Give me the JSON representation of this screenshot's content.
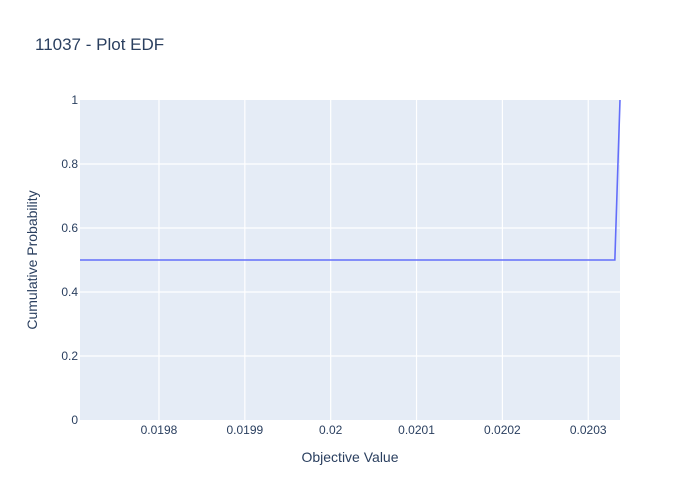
{
  "chart_data": {
    "type": "line",
    "title": "11037 - Plot EDF",
    "xlabel": "Objective Value",
    "ylabel": "Cumulative Probability",
    "xlim": [
      0.019708,
      0.020337
    ],
    "ylim": [
      0,
      1
    ],
    "xticks": [
      0.0198,
      0.0199,
      0.02,
      0.0201,
      0.0202,
      0.0203
    ],
    "xtick_labels": [
      "0.0198",
      "0.0199",
      "0.02",
      "0.0201",
      "0.0202",
      "0.0203"
    ],
    "yticks": [
      0,
      0.2,
      0.4,
      0.6,
      0.8,
      1
    ],
    "ytick_labels": [
      "0",
      "0.2",
      "0.4",
      "0.6",
      "0.8",
      "1"
    ],
    "grid": true,
    "series": [
      {
        "x": [
          0.019708,
          0.020331,
          0.020337
        ],
        "y": [
          0.5,
          0.5,
          1.0
        ],
        "color": "#636efa"
      }
    ],
    "colors": {
      "plot_bg": "#e5ecf6",
      "grid": "#ffffff",
      "text": "#2a3f5f",
      "line": "#636efa"
    }
  }
}
